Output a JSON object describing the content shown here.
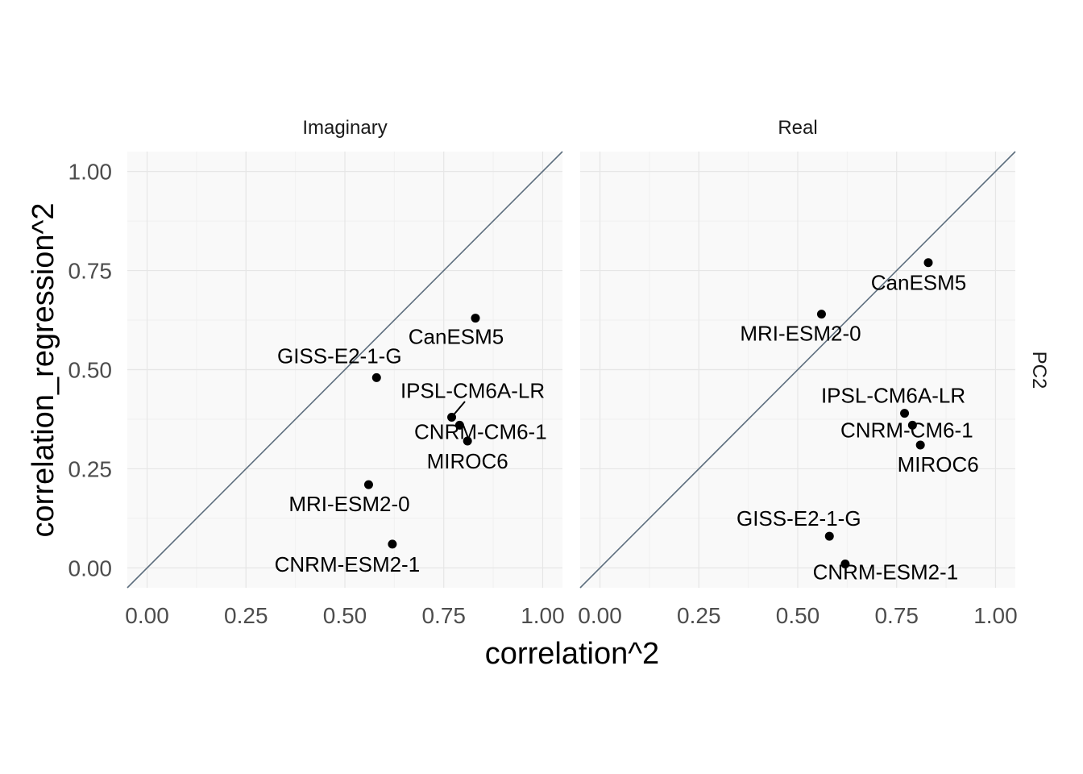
{
  "chart_data": {
    "type": "scatter",
    "title": "",
    "xlabel": "correlation^2",
    "ylabel": "correlation_regression^2",
    "xlim": [
      -0.05,
      1.05
    ],
    "ylim": [
      -0.05,
      1.05
    ],
    "x_ticks": [
      "0.00",
      "0.25",
      "0.50",
      "0.75",
      "1.00"
    ],
    "y_ticks": [
      "0.00",
      "0.25",
      "0.50",
      "0.75",
      "1.00"
    ],
    "grid": true,
    "reference_line": "y = x",
    "row_label": "PC2",
    "panels": [
      {
        "name": "Imaginary",
        "points": [
          {
            "label": "CanESM5",
            "x": 0.83,
            "y": 0.63
          },
          {
            "label": "GISS-E2-1-G",
            "x": 0.58,
            "y": 0.48
          },
          {
            "label": "IPSL-CM6A-LR",
            "x": 0.77,
            "y": 0.38
          },
          {
            "label": "CNRM-CM6-1",
            "x": 0.79,
            "y": 0.36
          },
          {
            "label": "MIROC6",
            "x": 0.81,
            "y": 0.32
          },
          {
            "label": "MRI-ESM2-0",
            "x": 0.56,
            "y": 0.21
          },
          {
            "label": "CNRM-ESM2-1",
            "x": 0.62,
            "y": 0.06
          }
        ]
      },
      {
        "name": "Real",
        "points": [
          {
            "label": "CanESM5",
            "x": 0.83,
            "y": 0.77
          },
          {
            "label": "MRI-ESM2-0",
            "x": 0.56,
            "y": 0.64
          },
          {
            "label": "IPSL-CM6A-LR",
            "x": 0.77,
            "y": 0.39
          },
          {
            "label": "CNRM-CM6-1",
            "x": 0.79,
            "y": 0.36
          },
          {
            "label": "MIROC6",
            "x": 0.81,
            "y": 0.31
          },
          {
            "label": "GISS-E2-1-G",
            "x": 0.58,
            "y": 0.08
          },
          {
            "label": "CNRM-ESM2-1",
            "x": 0.62,
            "y": 0.01
          }
        ]
      }
    ]
  },
  "colors": {
    "panel_bg": "#f9f9f9",
    "grid_major": "#e6e6e6",
    "grid_minor": "#f0f0f0",
    "diagonal": "#5d6e7e",
    "point": "#000000"
  }
}
